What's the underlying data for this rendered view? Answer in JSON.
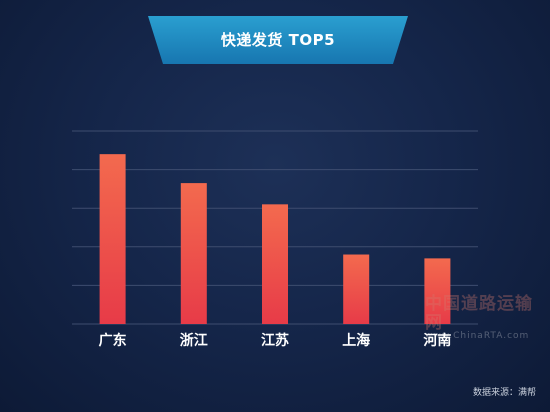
{
  "title": "快递发货 TOP5",
  "chart_data": {
    "type": "bar",
    "categories": [
      "广东",
      "浙江",
      "江苏",
      "上海",
      "河南"
    ],
    "values": [
      88,
      73,
      62,
      36,
      34
    ],
    "title": "快递发货 TOP5",
    "xlabel": "",
    "ylabel": "",
    "ylim": [
      0,
      100
    ],
    "grid": true,
    "legend": "none",
    "colors": {
      "bar_top": "#f36a4e",
      "bar_bottom": "#e73b48",
      "grid": "#3e4d6f",
      "label": "#ffffff"
    }
  },
  "watermark": {
    "cn": "中国道路运输网",
    "en": "www.ChinaRTA.com"
  },
  "source": "数据来源：满帮"
}
